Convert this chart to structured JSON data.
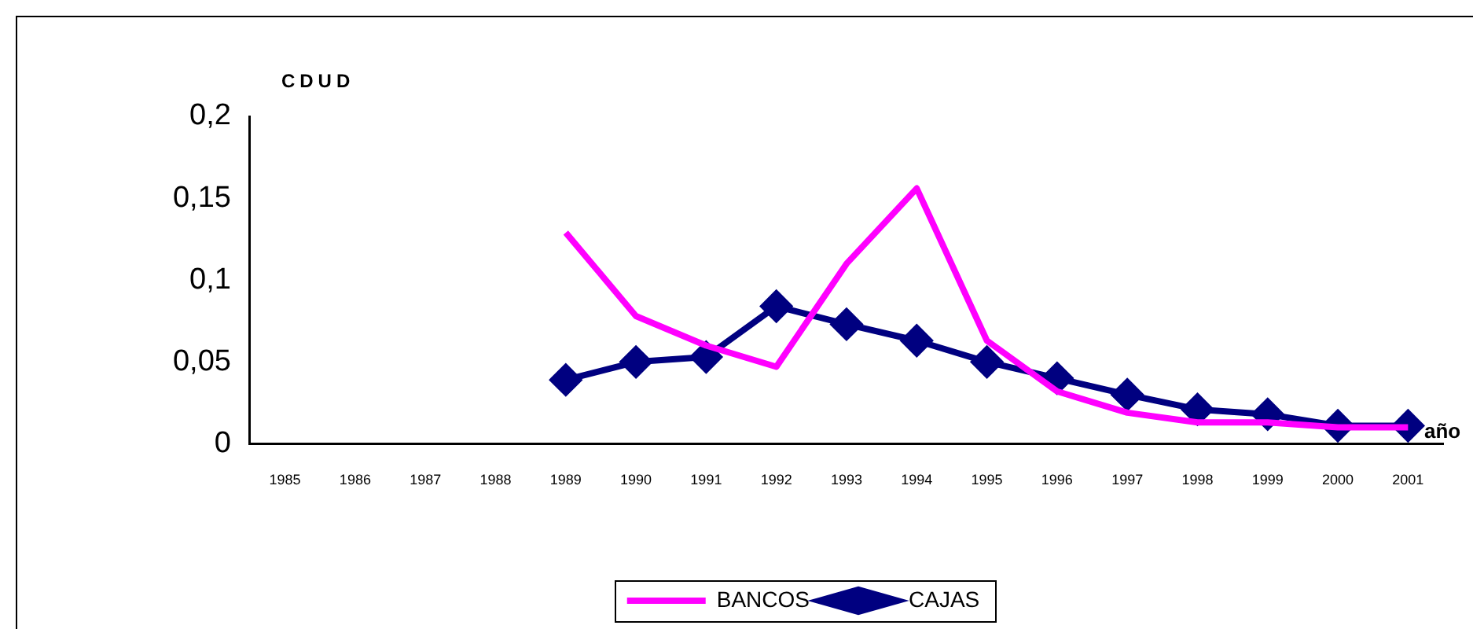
{
  "chart_data": {
    "type": "line",
    "ylabel": "CDUD",
    "xlabel": "año",
    "categories": [
      "1985",
      "1986",
      "1987",
      "1988",
      "1989",
      "1990",
      "1991",
      "1992",
      "1993",
      "1994",
      "1995",
      "1996",
      "1997",
      "1998",
      "1999",
      "2000",
      "2001"
    ],
    "series": [
      {
        "name": "CAJAS",
        "color": "#000080",
        "marker": "diamond",
        "values": [
          null,
          null,
          null,
          null,
          0.039,
          0.05,
          0.053,
          0.084,
          0.073,
          0.063,
          0.05,
          0.04,
          0.03,
          0.021,
          0.018,
          0.011,
          0.011
        ]
      },
      {
        "name": "BANCOS",
        "color": "#ff00ff",
        "marker": "none",
        "values": [
          null,
          null,
          null,
          null,
          0.129,
          0.078,
          0.06,
          0.047,
          0.11,
          0.156,
          0.063,
          0.032,
          0.019,
          0.013,
          0.013,
          0.01,
          0.01
        ]
      }
    ],
    "ylim": [
      0,
      0.2
    ],
    "yticks": [
      {
        "value": 0,
        "label": "0"
      },
      {
        "value": 0.05,
        "label": "0,05"
      },
      {
        "value": 0.1,
        "label": "0,1"
      },
      {
        "value": 0.15,
        "label": "0,15"
      },
      {
        "value": 0.2,
        "label": "0,2"
      }
    ],
    "grid": false,
    "legend": "bottom"
  }
}
